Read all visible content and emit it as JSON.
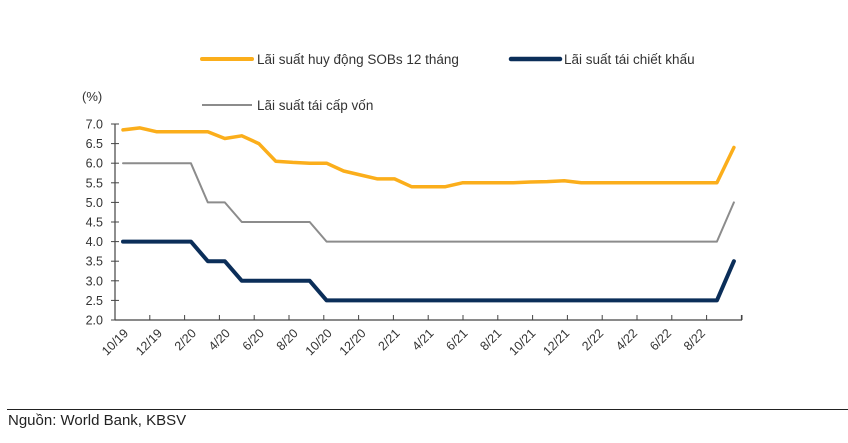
{
  "chart_data": {
    "type": "line",
    "title": "",
    "ylabel": "(%)",
    "xlabel": "",
    "ylim": [
      2.0,
      7.0
    ],
    "yticks": [
      "7.0",
      "6.5",
      "6.0",
      "5.5",
      "5.0",
      "4.5",
      "4.0",
      "3.5",
      "3.0",
      "2.5",
      "2.0"
    ],
    "ytick_values": [
      7.0,
      6.5,
      6.0,
      5.5,
      5.0,
      4.5,
      4.0,
      3.5,
      3.0,
      2.5,
      2.0
    ],
    "grid": false,
    "legend_position": "top",
    "x": [
      "10/19",
      "11/19",
      "12/19",
      "1/20",
      "2/20",
      "3/20",
      "4/20",
      "5/20",
      "6/20",
      "7/20",
      "8/20",
      "9/20",
      "10/20",
      "11/20",
      "12/20",
      "1/21",
      "2/21",
      "3/21",
      "4/21",
      "5/21",
      "6/21",
      "7/21",
      "8/21",
      "9/21",
      "10/21",
      "11/21",
      "12/21",
      "1/22",
      "2/22",
      "3/22",
      "4/22",
      "5/22",
      "6/22",
      "7/22",
      "8/22",
      "9/22",
      "10/22"
    ],
    "xtick_labels": [
      "10/19",
      "12/19",
      "2/20",
      "4/20",
      "6/20",
      "8/20",
      "10/20",
      "12/20",
      "2/21",
      "4/21",
      "6/21",
      "8/21",
      "10/21",
      "12/21",
      "2/22",
      "4/22",
      "6/22",
      "8/22"
    ],
    "series": [
      {
        "name": "Lãi suất huy động SOBs 12 tháng",
        "color": "#FBAE1B",
        "values": [
          6.85,
          6.9,
          6.8,
          6.8,
          6.8,
          6.8,
          6.63,
          6.7,
          6.5,
          6.05,
          6.02,
          6.0,
          6.0,
          5.8,
          5.7,
          5.6,
          5.6,
          5.4,
          5.4,
          5.4,
          5.5,
          5.5,
          5.5,
          5.5,
          5.52,
          5.53,
          5.55,
          5.5,
          5.5,
          5.5,
          5.5,
          5.5,
          5.5,
          5.5,
          5.5,
          5.5,
          6.4
        ]
      },
      {
        "name": "Lãi suất tái chiết khấu",
        "color": "#0B2E59",
        "values": [
          4.0,
          4.0,
          4.0,
          4.0,
          4.0,
          3.5,
          3.5,
          3.0,
          3.0,
          3.0,
          3.0,
          3.0,
          2.5,
          2.5,
          2.5,
          2.5,
          2.5,
          2.5,
          2.5,
          2.5,
          2.5,
          2.5,
          2.5,
          2.5,
          2.5,
          2.5,
          2.5,
          2.5,
          2.5,
          2.5,
          2.5,
          2.5,
          2.5,
          2.5,
          2.5,
          2.5,
          3.5
        ]
      },
      {
        "name": "Lãi suất tái cấp vốn",
        "color": "#8C8C8C",
        "values": [
          6.0,
          6.0,
          6.0,
          6.0,
          6.0,
          5.0,
          5.0,
          4.5,
          4.5,
          4.5,
          4.5,
          4.5,
          4.0,
          4.0,
          4.0,
          4.0,
          4.0,
          4.0,
          4.0,
          4.0,
          4.0,
          4.0,
          4.0,
          4.0,
          4.0,
          4.0,
          4.0,
          4.0,
          4.0,
          4.0,
          4.0,
          4.0,
          4.0,
          4.0,
          4.0,
          4.0,
          5.0
        ]
      }
    ]
  },
  "legend": {
    "items": [
      {
        "label": "Lãi suất huy động SOBs 12 tháng",
        "color": "#FBAE1B"
      },
      {
        "label": "Lãi suất tái chiết khấu",
        "color": "#0B2E59"
      },
      {
        "label": "Lãi suất tái cấp vốn",
        "color": "#8C8C8C"
      }
    ]
  },
  "footer": {
    "source": "Nguồn: World Bank, KBSV"
  }
}
